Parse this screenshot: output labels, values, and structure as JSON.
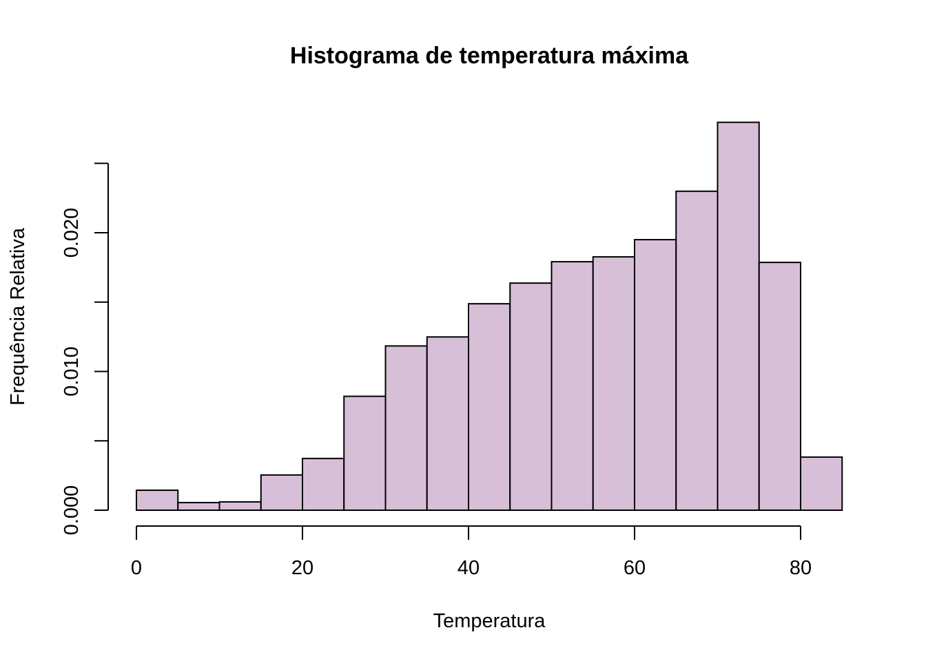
{
  "chart_data": {
    "type": "bar",
    "title": "Histograma de temperatura máxima",
    "xlabel": "Temperatura",
    "ylabel": "Frequência Relativa",
    "bin_edges": [
      0,
      5,
      10,
      15,
      20,
      25,
      30,
      35,
      40,
      45,
      50,
      55,
      60,
      65,
      70,
      75,
      80,
      85
    ],
    "values": [
      0.00144,
      0.00055,
      0.0006,
      0.00254,
      0.00373,
      0.00821,
      0.01184,
      0.01249,
      0.01488,
      0.01637,
      0.01791,
      0.01826,
      0.0195,
      0.02299,
      0.02796,
      0.01786,
      0.00383
    ],
    "xlim": [
      0,
      85
    ],
    "ylim": [
      0,
      0.025
    ],
    "xticks": [
      0,
      20,
      40,
      60,
      80
    ],
    "xtick_labels": [
      "0",
      "20",
      "40",
      "60",
      "80"
    ],
    "yticks": [
      0,
      0.005,
      0.01,
      0.015,
      0.02,
      0.025
    ],
    "ytick_labels": [
      "0.000",
      "0.010",
      "0.020"
    ],
    "ytick_label_values": [
      0,
      0.01,
      0.02
    ],
    "bar_color": "#D8BFD8",
    "grid": false
  }
}
